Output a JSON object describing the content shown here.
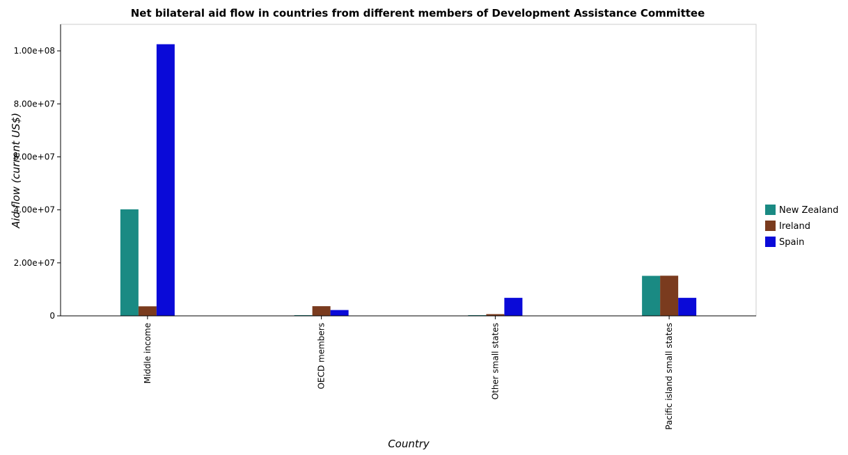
{
  "chart_data": {
    "type": "bar",
    "title": "Net bilateral aid flow in countries from different members of Development Assistance Committee",
    "xlabel": "Country",
    "ylabel": "Aid flow (current US$)",
    "categories": [
      "Middle income",
      "OECD members",
      "Other small states",
      "Pacific island small states"
    ],
    "series": [
      {
        "name": "New Zealand",
        "color": "#1a8a83",
        "values": [
          40200000,
          100000,
          100000,
          15100000
        ]
      },
      {
        "name": "Ireland",
        "color": "#7a3b1e",
        "values": [
          3600000,
          3650000,
          650000,
          15150000
        ]
      },
      {
        "name": "Spain",
        "color": "#0a0ad8",
        "values": [
          102500000,
          2200000,
          6800000,
          6800000
        ]
      }
    ],
    "yticks": [
      0,
      20000000,
      40000000,
      60000000,
      80000000,
      100000000
    ],
    "ytick_labels": [
      "0",
      "2.00e+07",
      "4.00e+07",
      "6.00e+07",
      "8.00e+07",
      "1.00e+08"
    ],
    "ylim": [
      0,
      110000000
    ],
    "grid": false,
    "legend_position": "right"
  }
}
